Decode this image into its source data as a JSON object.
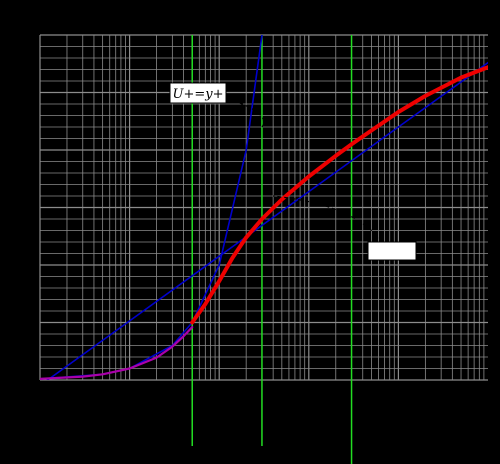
{
  "chart_data": {
    "type": "line",
    "title": "",
    "xlabel": "",
    "ylabel": "",
    "xscale": "log",
    "xlim": [
      0.1,
      10000
    ],
    "ylim": [
      0,
      30
    ],
    "grid": true,
    "legend": "none",
    "background": "#000000",
    "plot_background": "#000000",
    "grid_color": "#8c8c8c",
    "vertical_markers": {
      "color": "#22dd22",
      "x": [
        5,
        30,
        300
      ]
    },
    "series": [
      {
        "name": "",
        "color": "#0000cc",
        "kind": "viscous-sublayer",
        "x": [
          0.1,
          0.5,
          1,
          3,
          5,
          10,
          20,
          30,
          40
        ],
        "y": [
          0.1,
          0.5,
          1,
          3,
          5,
          10,
          20,
          30,
          40
        ]
      },
      {
        "name": "",
        "color": "#0000cc",
        "kind": "log-law",
        "x": [
          0.1,
          1,
          10,
          100,
          1000,
          10000
        ],
        "y": [
          -0.48,
          5.14,
          10.76,
          16.38,
          22.0,
          27.6
        ]
      },
      {
        "name": "",
        "color": "#ee0000",
        "kind": "measured-profile",
        "x": [
          5,
          7,
          10,
          14,
          20,
          30,
          50,
          100,
          200,
          300,
          500,
          1000,
          2000,
          5000,
          10000
        ],
        "y": [
          5.0,
          6.6,
          8.6,
          10.6,
          12.4,
          14.0,
          15.7,
          17.7,
          19.5,
          20.5,
          21.7,
          23.3,
          24.7,
          26.3,
          27.2
        ]
      },
      {
        "name": "",
        "color": "#aa00aa",
        "kind": "wall-profile",
        "x": [
          0.1,
          0.3,
          0.5,
          1,
          2,
          3,
          4,
          5
        ],
        "y": [
          0.1,
          0.3,
          0.5,
          1.0,
          1.95,
          2.9,
          3.8,
          4.6
        ]
      }
    ],
    "annotations": [
      {
        "text": "U+=y+",
        "target_x": 30,
        "target_y": 22
      },
      {
        "text": "",
        "target_x": 40,
        "target_y": 16
      }
    ]
  }
}
